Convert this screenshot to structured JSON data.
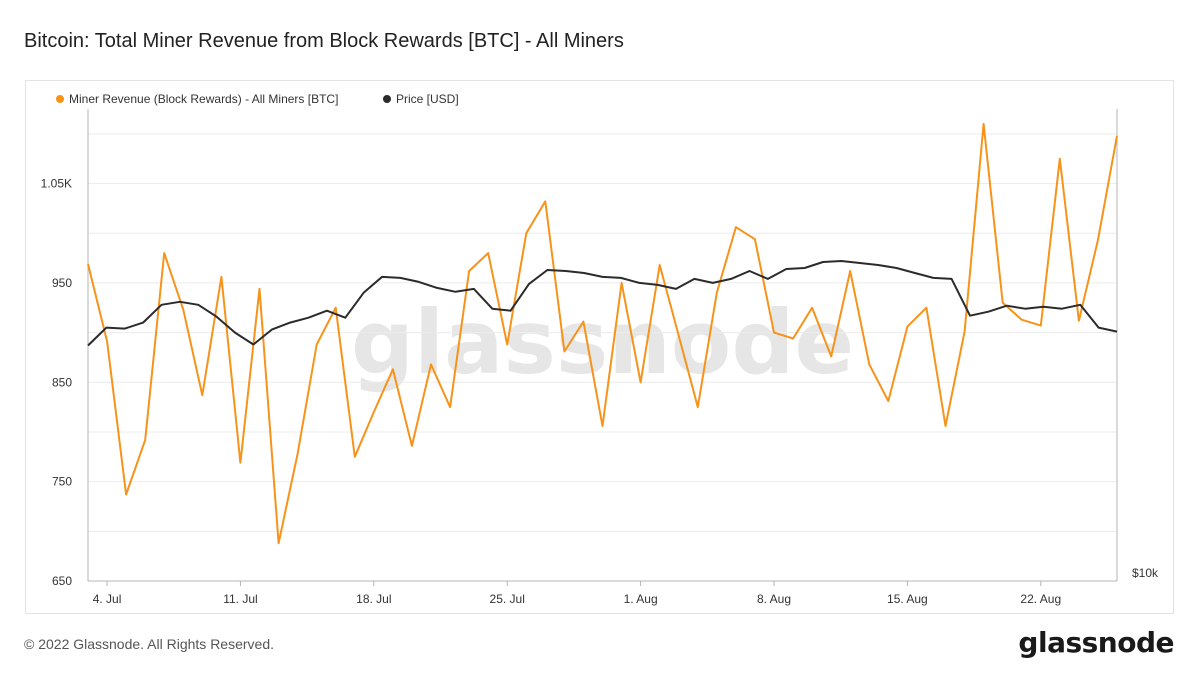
{
  "title": "Bitcoin: Total Miner Revenue from Block Rewards [BTC] - All Miners",
  "footer": "© 2022 Glassnode. All Rights Reserved.",
  "logo_text": "glassnode",
  "watermark": "glassnode",
  "colors": {
    "revenue": "#f7931a",
    "price": "#2b2b2b",
    "grid": "#ececec",
    "axis": "#b5b5b5",
    "marker": "#c8c8c8"
  },
  "chart_data": {
    "type": "line",
    "legend_position": "top-left",
    "grid": true,
    "x_ticks": [
      "4. Jul",
      "11. Jul",
      "18. Jul",
      "25. Jul",
      "1. Aug",
      "8. Aug",
      "15. Aug",
      "22. Aug"
    ],
    "y_left": {
      "ticks": [
        "650",
        "750",
        "850",
        "950",
        "1.05K"
      ],
      "range": [
        650,
        1125
      ]
    },
    "y_right": {
      "ticks": [
        "$10k"
      ]
    },
    "x_start": "3. Jul",
    "series": [
      {
        "name": "Miner Revenue (Block Rewards) - All Miners [BTC]",
        "axis": "left",
        "values": [
          969,
          891,
          737,
          792,
          980,
          923,
          837,
          956,
          769,
          944,
          688,
          778,
          888,
          925,
          775,
          820,
          863,
          786,
          868,
          825,
          962,
          980,
          888,
          1000,
          1032,
          881,
          911,
          806,
          950,
          850,
          968,
          897,
          825,
          940,
          1006,
          994,
          900,
          894,
          925,
          876,
          962,
          868,
          831,
          906,
          925,
          806,
          901,
          1110,
          930,
          913,
          907,
          1075,
          912,
          993,
          1098
        ]
      },
      {
        "name": "Price [USD]",
        "axis": "right",
        "values": [
          887,
          905,
          904,
          910,
          928,
          931,
          928,
          916,
          900,
          888,
          903,
          910,
          915,
          922,
          915,
          940,
          956,
          955,
          951,
          945,
          941,
          944,
          924,
          922,
          949,
          963,
          962,
          960,
          956,
          955,
          950,
          948,
          944,
          954,
          950,
          954,
          962,
          954,
          964,
          965,
          971,
          972,
          970,
          968,
          965,
          960,
          955,
          954,
          917,
          921,
          927,
          924,
          926,
          924,
          928,
          905,
          901
        ]
      }
    ]
  }
}
